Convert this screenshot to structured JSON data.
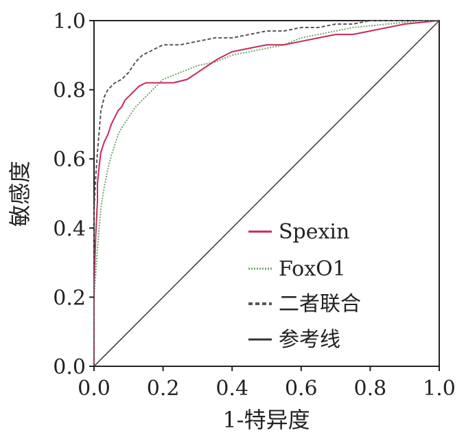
{
  "chart_data": {
    "type": "line",
    "xlabel": "1-特异度",
    "ylabel": "敏感度",
    "xlim": [
      0,
      1
    ],
    "ylim": [
      0,
      1
    ],
    "xticks": [
      "0.0",
      "0.2",
      "0.4",
      "0.6",
      "0.8",
      "1.0"
    ],
    "yticks": [
      "0.0",
      "0.2",
      "0.4",
      "0.6",
      "0.8",
      "1.0"
    ],
    "grid": false,
    "legend_position": "bottom-right",
    "series": [
      {
        "name": "Spexin",
        "color": "#c8285a",
        "style": "solid",
        "x": [
          0,
          0,
          0.005,
          0.01,
          0.01,
          0.015,
          0.02,
          0.03,
          0.04,
          0.05,
          0.06,
          0.07,
          0.08,
          0.09,
          0.1,
          0.11,
          0.12,
          0.13,
          0.15,
          0.18,
          0.2,
          0.23,
          0.27,
          0.3,
          0.33,
          0.36,
          0.4,
          0.45,
          0.5,
          0.55,
          0.6,
          0.65,
          0.7,
          0.75,
          0.8,
          0.85,
          0.9,
          0.95,
          1.0
        ],
        "y": [
          0,
          0.24,
          0.38,
          0.48,
          0.53,
          0.58,
          0.62,
          0.65,
          0.67,
          0.7,
          0.72,
          0.74,
          0.75,
          0.77,
          0.78,
          0.79,
          0.8,
          0.81,
          0.82,
          0.82,
          0.82,
          0.82,
          0.83,
          0.85,
          0.87,
          0.89,
          0.91,
          0.92,
          0.93,
          0.93,
          0.94,
          0.95,
          0.96,
          0.96,
          0.97,
          0.98,
          0.99,
          0.995,
          1.0
        ]
      },
      {
        "name": "FoxO1",
        "color": "#6aa86a",
        "style": "dotted",
        "x": [
          0,
          0,
          0.005,
          0.01,
          0.015,
          0.02,
          0.03,
          0.04,
          0.05,
          0.06,
          0.07,
          0.08,
          0.1,
          0.12,
          0.14,
          0.16,
          0.18,
          0.2,
          0.25,
          0.3,
          0.35,
          0.4,
          0.45,
          0.5,
          0.55,
          0.6,
          0.65,
          0.7,
          0.75,
          0.8,
          0.85,
          0.9,
          0.95,
          1.0
        ],
        "y": [
          0,
          0.2,
          0.27,
          0.34,
          0.4,
          0.46,
          0.52,
          0.57,
          0.61,
          0.64,
          0.67,
          0.69,
          0.72,
          0.75,
          0.77,
          0.79,
          0.81,
          0.83,
          0.85,
          0.87,
          0.88,
          0.9,
          0.91,
          0.92,
          0.93,
          0.95,
          0.96,
          0.97,
          0.98,
          0.985,
          0.99,
          0.995,
          1.0,
          1.0
        ]
      },
      {
        "name": "二者联合",
        "color": "#555555",
        "style": "dashed",
        "x": [
          0,
          0,
          0.005,
          0.01,
          0.015,
          0.02,
          0.03,
          0.04,
          0.05,
          0.06,
          0.08,
          0.1,
          0.12,
          0.14,
          0.16,
          0.18,
          0.2,
          0.25,
          0.3,
          0.35,
          0.4,
          0.45,
          0.5,
          0.55,
          0.6,
          0.65,
          0.7,
          0.75,
          0.8,
          0.85,
          0.9,
          0.95,
          1.0
        ],
        "y": [
          0,
          0.45,
          0.55,
          0.62,
          0.68,
          0.74,
          0.78,
          0.8,
          0.81,
          0.82,
          0.83,
          0.85,
          0.88,
          0.9,
          0.91,
          0.92,
          0.93,
          0.93,
          0.94,
          0.95,
          0.95,
          0.96,
          0.97,
          0.97,
          0.98,
          0.98,
          0.99,
          0.99,
          1.0,
          1.0,
          1.0,
          1.0,
          1.0
        ]
      },
      {
        "name": "参考线",
        "color": "#333333",
        "style": "solid-thin",
        "x": [
          0,
          1
        ],
        "y": [
          0,
          1
        ]
      }
    ]
  }
}
